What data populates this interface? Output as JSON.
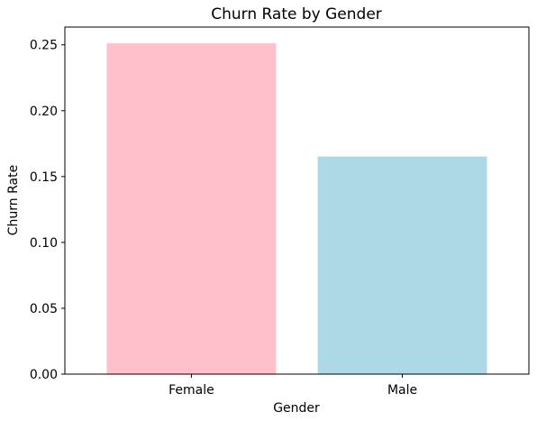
{
  "chart_data": {
    "type": "bar",
    "title": "Churn Rate by Gender",
    "xlabel": "Gender",
    "ylabel": "Churn Rate",
    "categories": [
      "Female",
      "Male"
    ],
    "values": [
      0.251,
      0.165
    ],
    "bar_colors": [
      "#ffc0cb",
      "#add8e6"
    ],
    "ylim": [
      0,
      0.2635
    ],
    "yticks": [
      0.0,
      0.05,
      0.1,
      0.15,
      0.2,
      0.25
    ],
    "ytick_labels": [
      "0.00",
      "0.05",
      "0.10",
      "0.15",
      "0.20",
      "0.25"
    ],
    "grid": false,
    "legend": "none"
  }
}
